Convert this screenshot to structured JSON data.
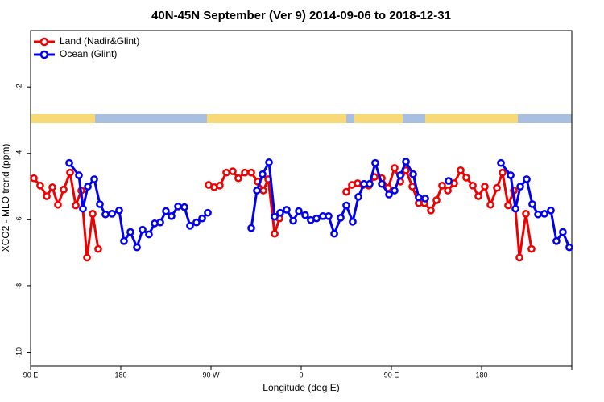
{
  "chart_data": {
    "type": "line",
    "title": "40N-45N September (Ver 9)   2014-09-06 to 2018-12-31",
    "x_label": "Longitude (deg E)",
    "y_label": "XCO2 - MLO trend (ppm)",
    "xlim": [
      90,
      630
    ],
    "ylim": [
      -10.4,
      -0.3
    ],
    "xticks": [
      {
        "value": 90,
        "label": "90 E"
      },
      {
        "value": 180,
        "label": "180"
      },
      {
        "value": 270,
        "label": "90 W"
      },
      {
        "value": 360,
        "label": "0"
      },
      {
        "value": 450,
        "label": "90 E"
      },
      {
        "value": 540,
        "label": "180"
      }
    ],
    "yticks": [
      -2,
      -4,
      -6,
      -8,
      -10
    ],
    "legend": "top-left",
    "series": [
      {
        "name": "Land (Nadir&Glint)",
        "color": "#ee0000",
        "x": [
          93.2,
          99.6,
          106.1,
          111.7,
          117.3,
          123,
          129.4,
          135,
          140.6,
          146.3,
          151.9,
          157.5,
          null,
          267.6,
          273.2,
          278.8,
          285.3,
          291.7,
          297.3,
          303.8,
          310.2,
          316.6,
          322.2,
          327.1,
          333.5,
          338.3,
          null,
          405,
          410.6,
          416.3,
          421.9,
          427.5,
          433.1,
          440.4,
          446.8,
          453.2,
          458.9,
          464.5,
          470.9,
          477.3,
          483,
          489.4,
          495,
          500.6,
          506.3,
          512.7,
          519.1,
          524.7,
          531.2,
          536.8,
          543.2,
          548.9,
          555.3,
          560.9,
          566.5,
          572.2,
          577.8,
          584.2,
          589.8
        ],
        "values": [
          -4.75,
          -4.97,
          -5.29,
          -5.02,
          -5.55,
          -5.09,
          -4.58,
          -5.57,
          -5.12,
          -7.14,
          -5.82,
          -6.88,
          null,
          -4.95,
          -5.02,
          -4.97,
          -4.58,
          -4.54,
          -4.75,
          -4.58,
          -4.58,
          -4.85,
          -5.12,
          -4.78,
          -6.42,
          -5.96,
          null,
          -5.16,
          -4.95,
          -4.9,
          -4.95,
          -4.97,
          -4.71,
          -4.75,
          -5.04,
          -4.44,
          -4.85,
          -4.51,
          -5,
          -5.5,
          -5.5,
          -5.72,
          -5.41,
          -4.97,
          -5.12,
          -4.9,
          -4.51,
          -4.73,
          -4.97,
          -5.29,
          -5,
          -5.55,
          -5.04,
          -4.58,
          -5.57,
          -5.12,
          -7.14,
          -5.82,
          -6.88
        ]
      },
      {
        "name": "Ocean (Glint)",
        "color": "#0000ee",
        "x": [
          128.6,
          138.2,
          142.2,
          147.1,
          153.5,
          159.1,
          164.7,
          171.2,
          178.4,
          183.2,
          189.6,
          196.1,
          201.7,
          208.1,
          213.8,
          219.4,
          225,
          230.6,
          237.1,
          243.5,
          249.1,
          255.5,
          261.2,
          266.8,
          null,
          310.2,
          315.8,
          321.4,
          327.9,
          333.5,
          339.1,
          345.5,
          352,
          357.6,
          364,
          369.6,
          375.3,
          381.7,
          387.3,
          393,
          399.4,
          405,
          411.4,
          417.1,
          422.7,
          428.3,
          433.9,
          440.4,
          447.6,
          453.2,
          458.9,
          464.5,
          471.7,
          477.3,
          483.8,
          null,
          507.1,
          null,
          559.3,
          569,
          573.8,
          578.6,
          585,
          590.6,
          596.3,
          602.7,
          609.1,
          614.7,
          621.1,
          627.5
        ],
        "values": [
          -4.29,
          -4.66,
          -5.67,
          -5,
          -4.78,
          -5.53,
          -5.84,
          -5.82,
          -5.72,
          -6.64,
          -6.37,
          -6.83,
          -6.3,
          -6.44,
          -6.11,
          -6.08,
          -5.74,
          -5.89,
          -5.6,
          -5.62,
          -6.18,
          -6.08,
          -5.96,
          -5.79,
          null,
          -6.25,
          -5.12,
          -4.63,
          -4.27,
          -5.91,
          -5.79,
          -5.7,
          -6.03,
          -5.74,
          -5.86,
          -6.01,
          -5.96,
          -5.89,
          -5.89,
          -6.42,
          -5.94,
          -5.57,
          -6.06,
          -5.31,
          -4.92,
          -4.92,
          -4.29,
          -4.92,
          -5.24,
          -5.12,
          -4.66,
          -4.25,
          -4.63,
          -5.33,
          -5.36,
          null,
          -4.83,
          null,
          -4.29,
          -4.66,
          -5.67,
          -5,
          -4.78,
          -5.53,
          -5.84,
          -5.82,
          -5.72,
          -6.64,
          -6.37,
          -6.83
        ]
      }
    ]
  }
}
